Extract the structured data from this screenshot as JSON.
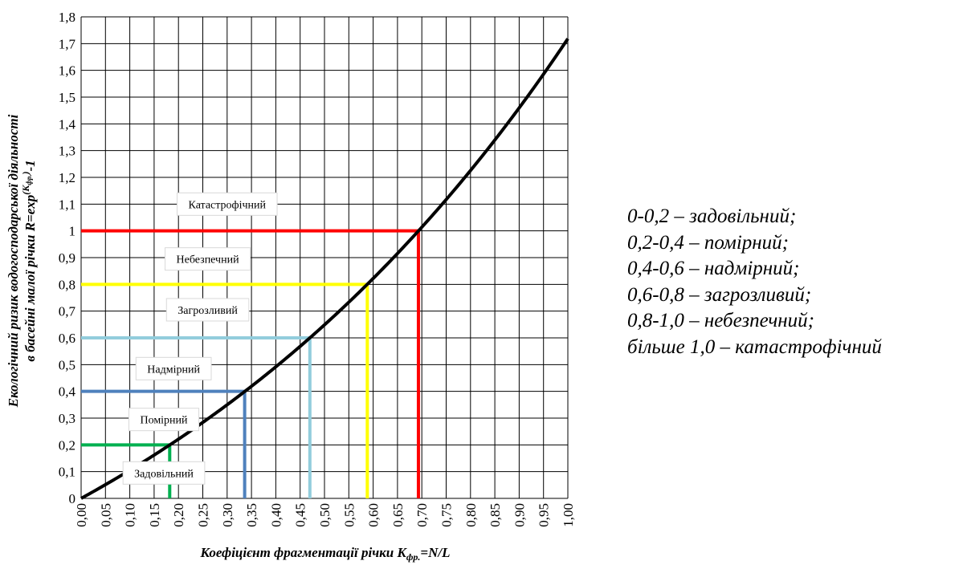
{
  "chart_data": {
    "type": "line",
    "xlabel": "Коефіцієнт фрагментації річки K",
    "xlabel_sub": "фр.",
    "xlabel_tail": "=N/L",
    "ylabel_line1": "Екологічний ризик водогосподарської  діяльності",
    "ylabel_line2_pre": "в басейні  малої  річки  R=exp",
    "ylabel_sup": "(K",
    "ylabel_sup_sub": "фр.",
    "ylabel_sup_close": ")",
    "ylabel_tail": "-1",
    "xlim": [
      0,
      1.0
    ],
    "ylim": [
      0,
      1.8
    ],
    "x_ticks": [
      "0,00",
      "0,05",
      "0,10",
      "0,15",
      "0,20",
      "0,25",
      "0,30",
      "0,35",
      "0,40",
      "0,45",
      "0,50",
      "0,55",
      "0,60",
      "0,65",
      "0,70",
      "0,75",
      "0,80",
      "0,85",
      "0,90",
      "0,95",
      "1,00"
    ],
    "y_ticks": [
      "0",
      "0,1",
      "0,2",
      "0,3",
      "0,4",
      "0,5",
      "0,6",
      "0,7",
      "0,8",
      "0,9",
      "1",
      "1,1",
      "1,2",
      "1,3",
      "1,4",
      "1,5",
      "1,6",
      "1,7",
      "1,8"
    ],
    "grid": true,
    "curve": {
      "formula": "exp(x)-1",
      "color": "#000000",
      "x": [
        0,
        0.05,
        0.1,
        0.15,
        0.2,
        0.25,
        0.3,
        0.35,
        0.4,
        0.45,
        0.5,
        0.55,
        0.6,
        0.65,
        0.7,
        0.75,
        0.8,
        0.85,
        0.9,
        0.95,
        1.0
      ],
      "y": [
        0,
        0.051,
        0.105,
        0.162,
        0.221,
        0.284,
        0.35,
        0.419,
        0.492,
        0.568,
        0.649,
        0.733,
        0.822,
        0.916,
        1.014,
        1.117,
        1.226,
        1.34,
        1.46,
        1.586,
        1.718
      ]
    },
    "thresholds": [
      {
        "y": 0.2,
        "x": 0.182,
        "color": "#00B050"
      },
      {
        "y": 0.4,
        "x": 0.336,
        "color": "#4F81BD"
      },
      {
        "y": 0.6,
        "x": 0.47,
        "color": "#92CDDC"
      },
      {
        "y": 0.8,
        "x": 0.588,
        "color": "#FFFF00"
      },
      {
        "y": 1.0,
        "x": 0.693,
        "color": "#FF0000"
      }
    ],
    "zones": [
      {
        "label": "Задовільний",
        "y": 0.095,
        "x": 0.17
      },
      {
        "label": "Помірний",
        "y": 0.295,
        "x": 0.17
      },
      {
        "label": "Надмірний",
        "y": 0.485,
        "x": 0.19
      },
      {
        "label": "Загрозливий",
        "y": 0.705,
        "x": 0.26
      },
      {
        "label": "Небезпечний",
        "y": 0.895,
        "x": 0.26
      },
      {
        "label": "Катастрофічний",
        "y": 1.1,
        "x": 0.3
      }
    ]
  },
  "legend": [
    "0-0,2 – задовільний;",
    "0,2-0,4 – помірний;",
    "0,4-0,6 – надмірний;",
    "0,6-0,8 – загрозливий;",
    "0,8-1,0 – небезпечний;",
    "більше 1,0 – катастрофічний"
  ]
}
